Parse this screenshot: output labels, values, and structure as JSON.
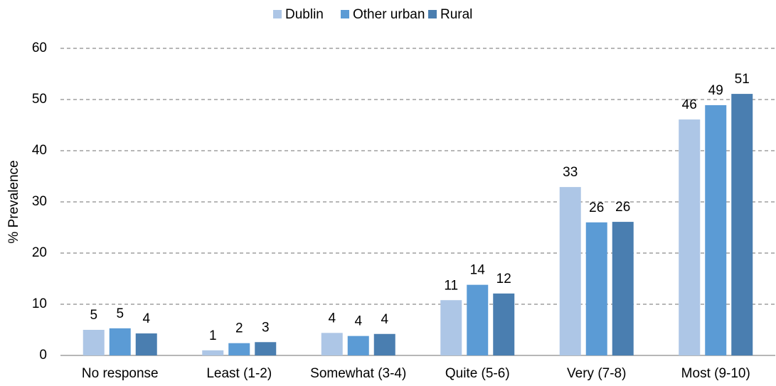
{
  "chart_data": {
    "type": "bar",
    "y_label": "% Prevalence",
    "categories": [
      "No response",
      "Least (1-2)",
      "Somewhat (3-4)",
      "Quite (5-6)",
      "Very (7-8)",
      "Most (9-10)"
    ],
    "series": [
      {
        "name": "Dublin",
        "color": "#adc6e6",
        "values": [
          5.0,
          1.0,
          4.4,
          10.8,
          32.9,
          46.1
        ],
        "value_labels": [
          "5",
          "1",
          "4",
          "11",
          "33",
          "46"
        ]
      },
      {
        "name": "Other urban",
        "color": "#5b9bd5",
        "values": [
          5.3,
          2.4,
          3.8,
          13.8,
          26.0,
          48.9
        ],
        "value_labels": [
          "5",
          "2",
          "4",
          "14",
          "26",
          "49"
        ]
      },
      {
        "name": "Rural",
        "color": "#4a7eb0",
        "values": [
          4.3,
          2.6,
          4.2,
          12.1,
          26.1,
          51.1
        ],
        "value_labels": [
          "4",
          "3",
          "4",
          "12",
          "26",
          "51"
        ]
      }
    ],
    "ylim": [
      0,
      60
    ],
    "yticks": [
      0,
      10,
      20,
      30,
      40,
      50,
      60
    ],
    "grid": true,
    "legend": "top"
  }
}
